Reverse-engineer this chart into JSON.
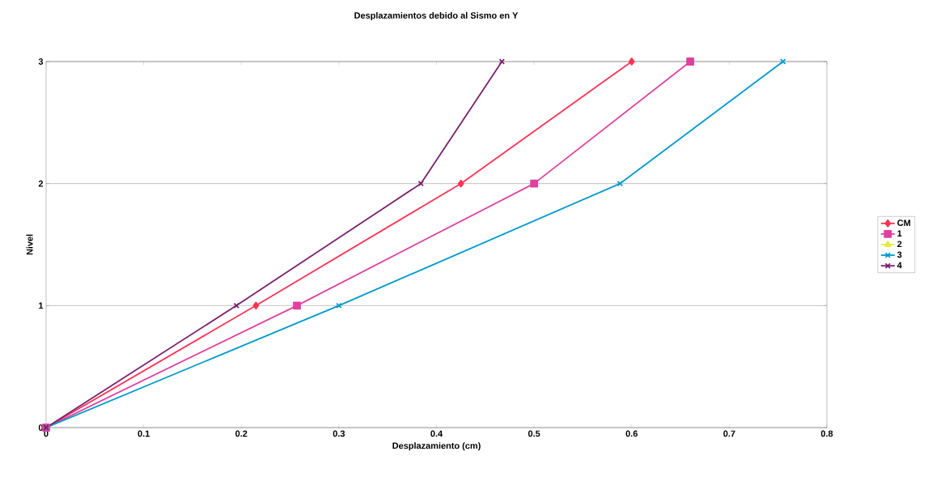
{
  "chart_data": {
    "type": "line",
    "title": "Desplazamientos debido al Sismo en Y",
    "xlabel": "Desplazamiento (cm)",
    "ylabel": "Nivel",
    "xlim": [
      0,
      0.8
    ],
    "xticks": [
      0,
      0.1,
      0.2,
      0.3,
      0.4,
      0.5,
      0.6,
      0.7,
      0.8
    ],
    "ylim": [
      0,
      3
    ],
    "yticks": [
      0,
      1,
      2,
      3
    ],
    "grid": "y",
    "legend": "right",
    "series": [
      {
        "name": "CM",
        "color": "#ff3355",
        "marker": "diamond",
        "x": [
          0,
          0.215,
          0.425,
          0.6
        ],
        "values": [
          0,
          1,
          2,
          3
        ]
      },
      {
        "name": "1",
        "color": "#e040a0",
        "marker": "square",
        "x": [
          0,
          0.257,
          0.5,
          0.66
        ],
        "values": [
          0,
          1,
          2,
          3
        ]
      },
      {
        "name": "2",
        "color": "#e8e840",
        "marker": "triangle",
        "values": [
          null,
          null,
          null,
          null
        ]
      },
      {
        "name": "3",
        "color": "#0099cc",
        "marker": "cross",
        "x": [
          0,
          0.3,
          0.588,
          0.755
        ],
        "values": [
          0,
          1,
          2,
          3
        ]
      },
      {
        "name": "4",
        "color": "#7a1f6e",
        "marker": "cross",
        "x": [
          0,
          0.195,
          0.384,
          0.467
        ],
        "values": [
          0,
          1,
          2,
          3
        ]
      }
    ]
  }
}
